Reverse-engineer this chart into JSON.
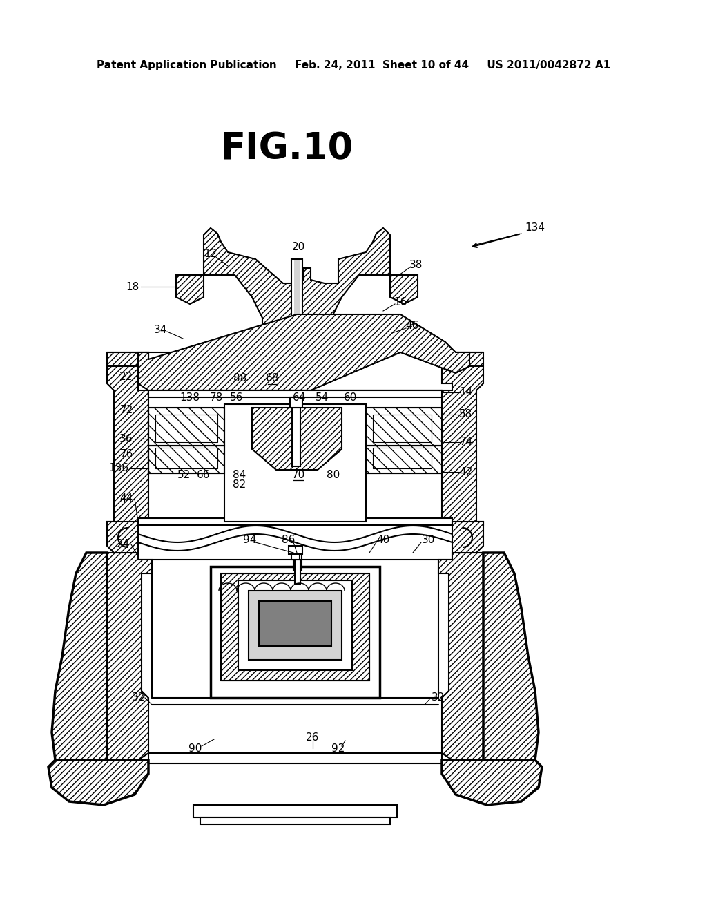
{
  "title": "FIG.10",
  "header_text": "Patent Application Publication     Feb. 24, 2011  Sheet 10 of 44     US 2011/0042872 A1",
  "bg_color": "#ffffff",
  "line_color": "#000000",
  "lw_main": 1.5,
  "lw_thick": 2.5,
  "lw_thin": 0.8,
  "label_fontsize": 11,
  "title_fontsize": 38,
  "header_fontsize": 11
}
